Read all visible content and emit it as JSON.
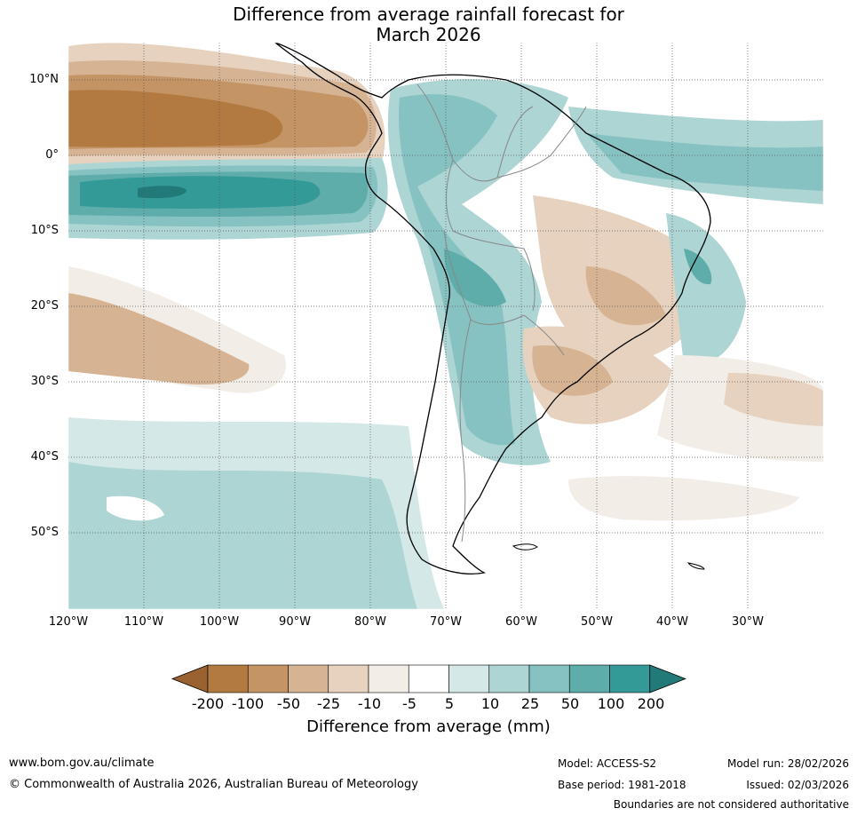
{
  "title": {
    "line1": "Difference from average rainfall forecast for",
    "line2": "March 2026"
  },
  "latitude_labels": [
    "10°N",
    "0°",
    "10°S",
    "20°S",
    "30°S",
    "40°S",
    "50°S"
  ],
  "longitude_labels": [
    "120°W",
    "110°W",
    "100°W",
    "90°W",
    "80°W",
    "70°W",
    "60°W",
    "50°W",
    "40°W",
    "30°W"
  ],
  "legend": {
    "title": "Difference from average (mm)",
    "ticks": [
      "-200",
      "-100",
      "-50",
      "-25",
      "-10",
      "-5",
      "5",
      "10",
      "25",
      "50",
      "100",
      "200"
    ],
    "colors": [
      "#9a6231",
      "#b27a40",
      "#c49465",
      "#d6b393",
      "#e6d2bf",
      "#f2ede7",
      "#ffffff",
      "#d3e8e7",
      "#acd5d4",
      "#86c2c1",
      "#5eadab",
      "#339a97",
      "#227a78"
    ]
  },
  "footer": {
    "website": "www.bom.gov.au/climate",
    "copyright": "© Commonwealth of Australia 2026, Australian Bureau of Meteorology",
    "model": "Model: ACCESS-S2",
    "base_period": "Base period: 1981-2018",
    "model_run": "Model run: 28/02/2026",
    "issued": "Issued: 02/03/2026",
    "disclaimer": "Boundaries are not considered authoritative"
  }
}
